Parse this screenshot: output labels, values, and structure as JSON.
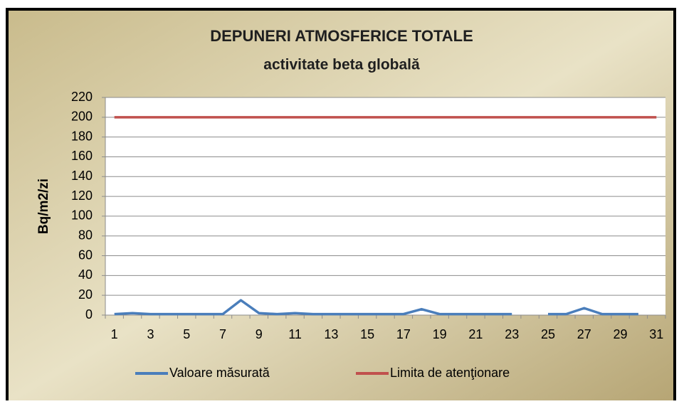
{
  "chart_data": {
    "type": "line",
    "title": "DEPUNERI ATMOSFERICE TOTALE",
    "subtitle": "activitate beta globală",
    "y_label": "Bq/m2/zi",
    "categories": [
      1,
      null,
      3,
      null,
      5,
      null,
      7,
      null,
      9,
      null,
      11,
      null,
      13,
      null,
      15,
      null,
      17,
      null,
      19,
      null,
      21,
      null,
      23,
      null,
      25,
      null,
      27,
      null,
      29,
      null,
      31
    ],
    "series": [
      {
        "name": "Valoare măsurată",
        "color": "#4a7ebb",
        "values": [
          1,
          2,
          1,
          1,
          1,
          1,
          1,
          15,
          2,
          1,
          2,
          1,
          1,
          1,
          1,
          1,
          1,
          6,
          1,
          1,
          1,
          1,
          1,
          null,
          1,
          1,
          7,
          1,
          1,
          1,
          null
        ]
      },
      {
        "name": "Limita de atenţionare",
        "color": "#c0504d",
        "values": [
          200,
          200,
          200,
          200,
          200,
          200,
          200,
          200,
          200,
          200,
          200,
          200,
          200,
          200,
          200,
          200,
          200,
          200,
          200,
          200,
          200,
          200,
          200,
          200,
          200,
          200,
          200,
          200,
          200,
          200,
          200
        ]
      }
    ],
    "ylim": [
      0,
      220
    ],
    "yticks": [
      0,
      20,
      40,
      60,
      80,
      100,
      120,
      140,
      160,
      180,
      200,
      220
    ],
    "grid": true,
    "legend": "bottom"
  }
}
